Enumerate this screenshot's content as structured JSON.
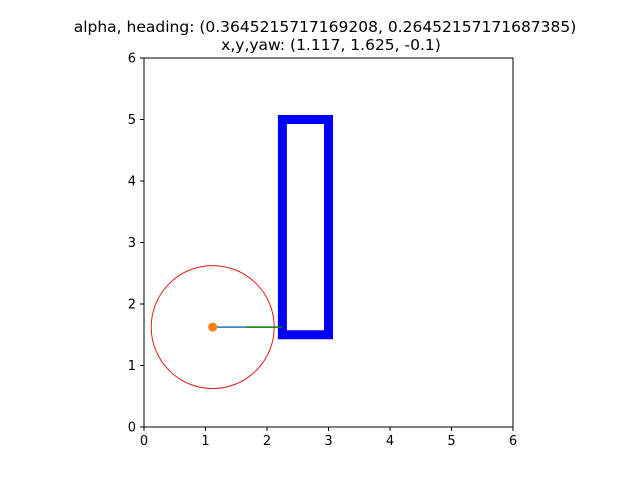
{
  "chart_data": {
    "type": "scatter",
    "title_lines": [
      "alpha, heading: (0.3645215717169208, 0.26452157171687385)",
      "x,y,yaw: (1.117, 1.625, -0.1)"
    ],
    "xlabel": "",
    "ylabel": "",
    "xlim": [
      0,
      6
    ],
    "ylim": [
      0,
      6
    ],
    "x_ticks": [
      "0",
      "1",
      "2",
      "3",
      "4",
      "5",
      "6"
    ],
    "y_ticks": [
      "0",
      "1",
      "2",
      "3",
      "4",
      "5",
      "6"
    ],
    "grid": false,
    "obstacle": {
      "shape": "rectangle",
      "corners": [
        [
          2.25,
          1.5
        ],
        [
          3.0,
          1.5
        ],
        [
          3.0,
          5.0
        ],
        [
          2.25,
          5.0
        ]
      ],
      "color": "#0000ff"
    },
    "robot": {
      "position": [
        1.117,
        1.625
      ],
      "color": "#ff7f0e"
    },
    "circle": {
      "center": [
        1.117,
        1.625
      ],
      "radius": 1.0,
      "color": "#e41a1c"
    },
    "heading_line": {
      "from": [
        1.117,
        1.625
      ],
      "to": [
        1.65,
        1.625
      ],
      "color": "#1f77b4"
    },
    "lookahead_line": {
      "from": [
        1.65,
        1.625
      ],
      "to": [
        2.25,
        1.625
      ],
      "color": "#008000"
    }
  }
}
